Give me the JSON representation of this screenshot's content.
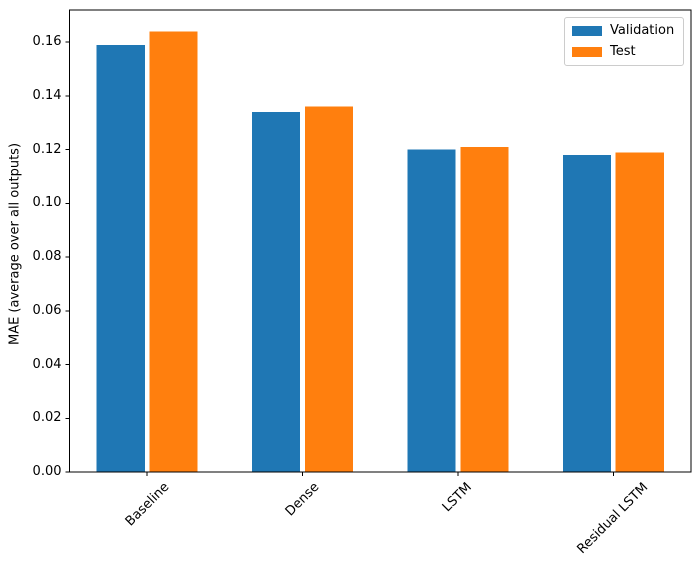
{
  "figure": {
    "background": "#ffffff"
  },
  "chart_data": {
    "type": "bar",
    "title": "",
    "categories": [
      "Baseline",
      "Dense",
      "LSTM",
      "Residual LSTM"
    ],
    "series": [
      {
        "name": "Validation",
        "color": "#1f77b4",
        "values": [
          0.159,
          0.134,
          0.12,
          0.118
        ]
      },
      {
        "name": "Test",
        "color": "#ff7f0e",
        "values": [
          0.164,
          0.136,
          0.121,
          0.119
        ]
      }
    ],
    "xlabel": "",
    "ylabel": "MAE (average over all outputs)",
    "ylim": [
      0,
      0.172
    ],
    "yticks": [
      0.0,
      0.02,
      0.04,
      0.06,
      0.08,
      0.1,
      0.12,
      0.14,
      0.16
    ],
    "ytick_labels": [
      "0.00",
      "0.02",
      "0.04",
      "0.06",
      "0.08",
      "0.10",
      "0.12",
      "0.14",
      "0.16"
    ],
    "xtick_rotation": 45,
    "bar_width": 0.31,
    "bar_offset": 0.17,
    "grid": false,
    "legend_position": "upper right",
    "axis_color": "#000000",
    "legend_border_color": "#cccccc"
  }
}
